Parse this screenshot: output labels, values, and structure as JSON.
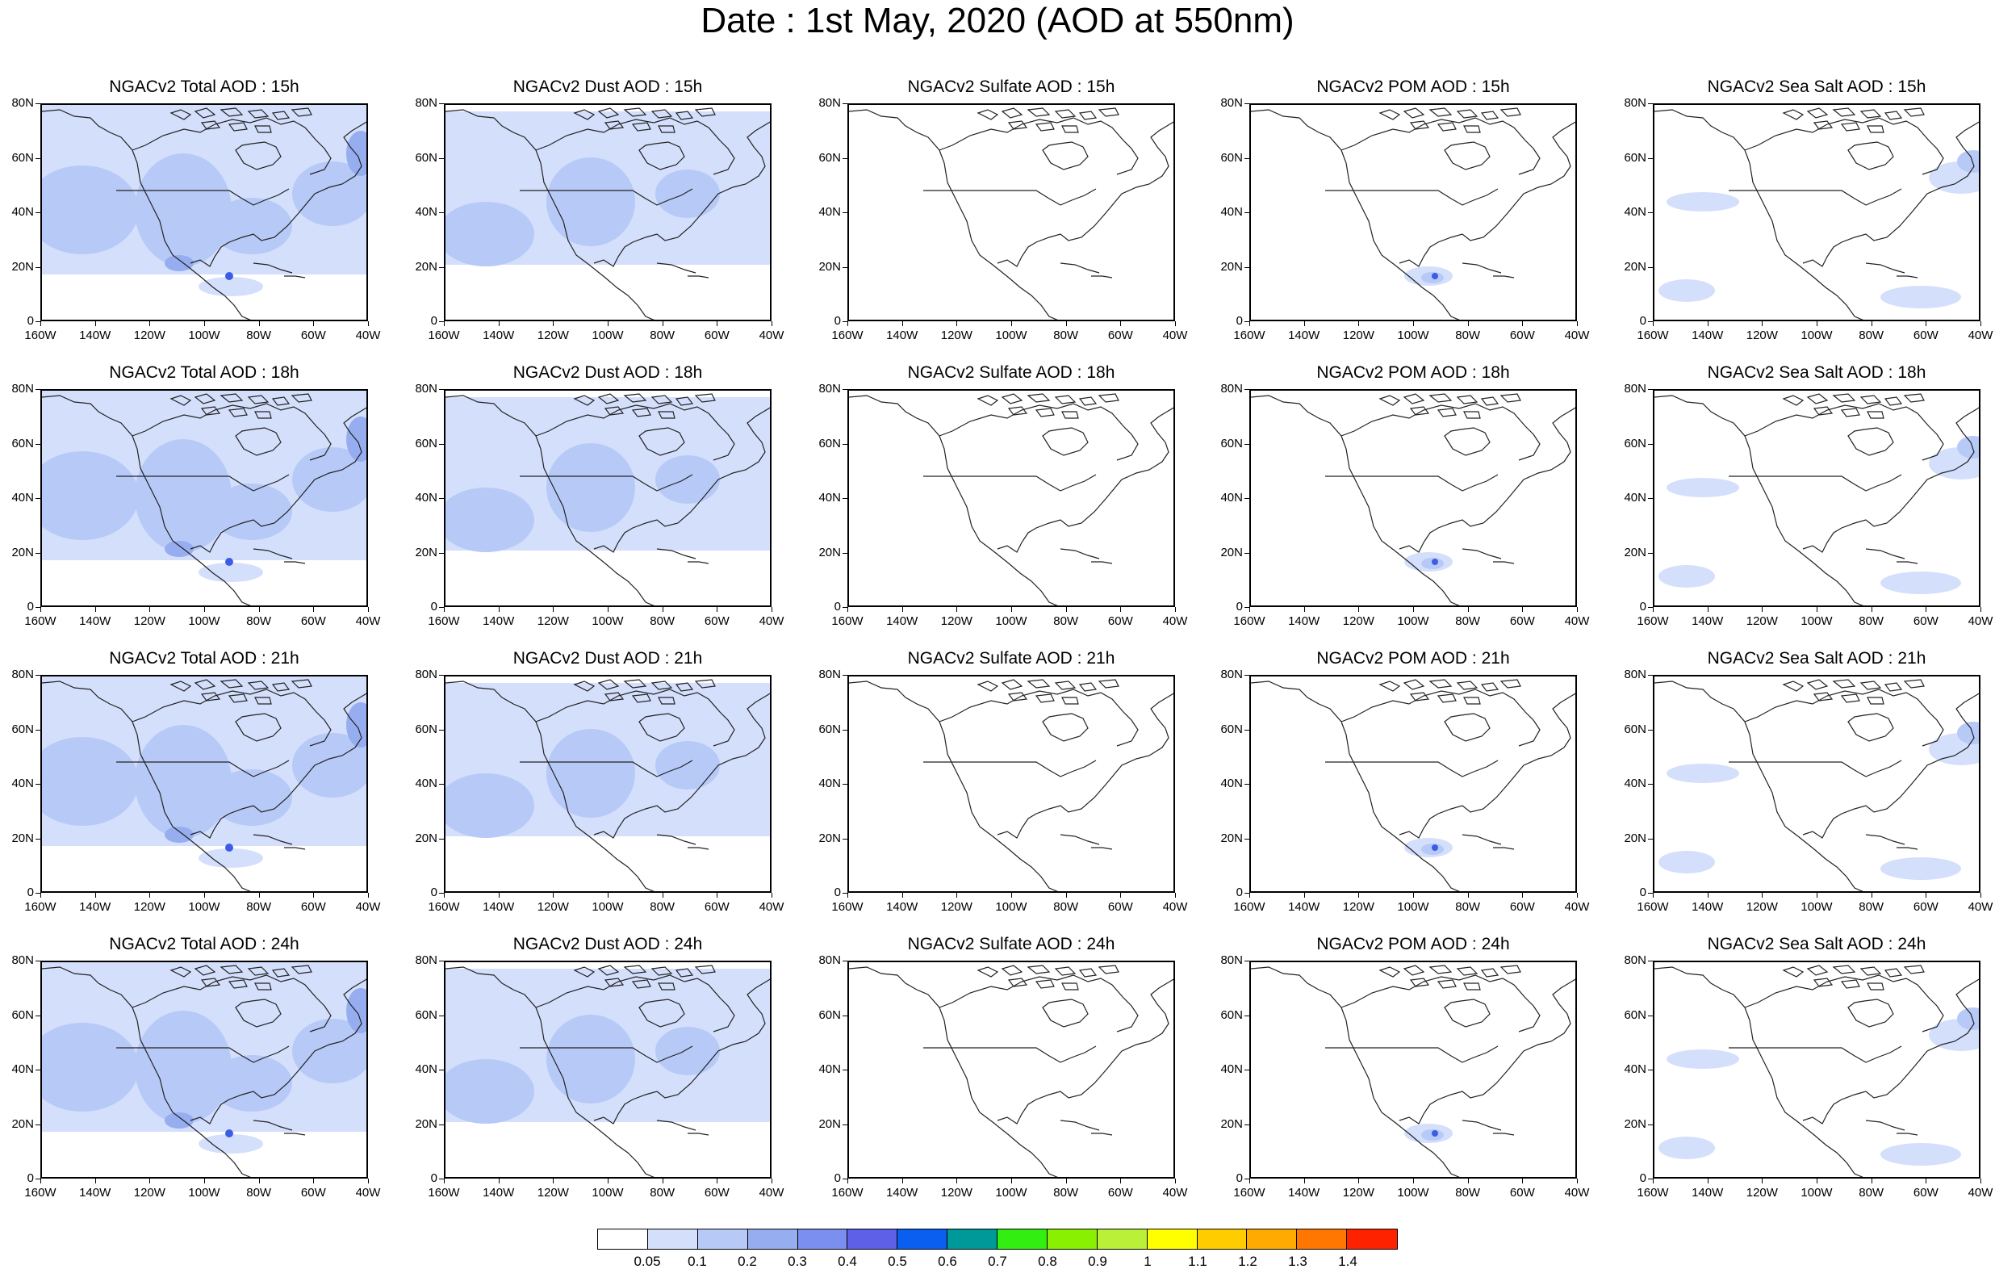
{
  "title": "Date : 1st May, 2020 (AOD at 550nm)",
  "lat_labels": [
    "80N",
    "60N",
    "40N",
    "20N",
    "0"
  ],
  "lon_labels": [
    "160W",
    "140W",
    "120W",
    "100W",
    "80W",
    "60W",
    "40W"
  ],
  "colors": {
    "coastline": "#222222",
    "level_1": "#d4dffc",
    "level_2": "#b6c9f7",
    "level_3": "#96aef0",
    "peak": "#3d5ce6"
  },
  "panels": [
    {
      "title": "NGACv2 Total AOD : 15h",
      "type": "total"
    },
    {
      "title": "NGACv2 Dust AOD : 15h",
      "type": "dust"
    },
    {
      "title": "NGACv2 Sulfate AOD : 15h",
      "type": "sulfate"
    },
    {
      "title": "NGACv2 POM AOD : 15h",
      "type": "pom"
    },
    {
      "title": "NGACv2 Sea Salt AOD : 15h",
      "type": "seasalt"
    },
    {
      "title": "NGACv2 Total AOD : 18h",
      "type": "total"
    },
    {
      "title": "NGACv2 Dust AOD : 18h",
      "type": "dust"
    },
    {
      "title": "NGACv2 Sulfate AOD : 18h",
      "type": "sulfate"
    },
    {
      "title": "NGACv2 POM AOD : 18h",
      "type": "pom"
    },
    {
      "title": "NGACv2 Sea Salt AOD : 18h",
      "type": "seasalt"
    },
    {
      "title": "NGACv2 Total AOD : 21h",
      "type": "total"
    },
    {
      "title": "NGACv2 Dust AOD : 21h",
      "type": "dust"
    },
    {
      "title": "NGACv2 Sulfate AOD : 21h",
      "type": "sulfate"
    },
    {
      "title": "NGACv2 POM AOD : 21h",
      "type": "pom"
    },
    {
      "title": "NGACv2 Sea Salt AOD : 21h",
      "type": "seasalt"
    },
    {
      "title": "NGACv2 Total AOD : 24h",
      "type": "total"
    },
    {
      "title": "NGACv2 Dust AOD : 24h",
      "type": "dust"
    },
    {
      "title": "NGACv2 Sulfate AOD : 24h",
      "type": "sulfate"
    },
    {
      "title": "NGACv2 POM AOD : 24h",
      "type": "pom"
    },
    {
      "title": "NGACv2 Sea Salt  AOD : 24h",
      "type": "seasalt"
    }
  ],
  "colorbar": {
    "colors": [
      "#ffffff",
      "#d4dffc",
      "#b6c9f7",
      "#96aef0",
      "#7b8ff0",
      "#5f60e8",
      "#0a5ef0",
      "#009999",
      "#33ee11",
      "#88f000",
      "#bbf038",
      "#ffff00",
      "#ffcc00",
      "#ffaa00",
      "#ff7700",
      "#ff2200"
    ],
    "labels": [
      "0.05",
      "0.1",
      "0.2",
      "0.3",
      "0.4",
      "0.5",
      "0.6",
      "0.7",
      "0.8",
      "0.9",
      "1",
      "1.1",
      "1.2",
      "1.3",
      "1.4"
    ]
  }
}
